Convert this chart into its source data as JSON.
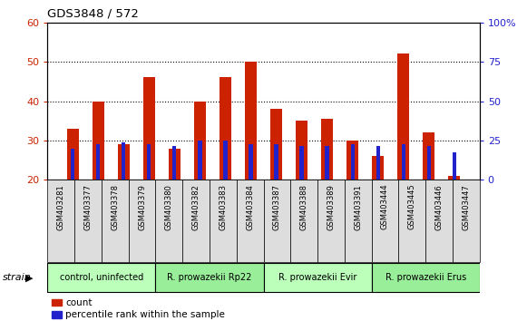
{
  "title": "GDS3848 / 572",
  "samples": [
    "GSM403281",
    "GSM403377",
    "GSM403378",
    "GSM403379",
    "GSM403380",
    "GSM403382",
    "GSM403383",
    "GSM403384",
    "GSM403387",
    "GSM403388",
    "GSM403389",
    "GSM403391",
    "GSM403444",
    "GSM403445",
    "GSM403446",
    "GSM403447"
  ],
  "count_values": [
    33,
    40,
    29,
    46,
    28,
    40,
    46,
    50,
    38,
    35,
    35.5,
    30,
    26,
    52,
    32,
    21
  ],
  "percentile_values": [
    28,
    29,
    29.5,
    29,
    28.5,
    30,
    30,
    29,
    29,
    28.5,
    28.5,
    29,
    28.5,
    29,
    28.5,
    27
  ],
  "ylim_left": [
    20,
    60
  ],
  "ylim_right": [
    0,
    100
  ],
  "yticks_left": [
    20,
    30,
    40,
    50,
    60
  ],
  "yticks_right": [
    0,
    25,
    50,
    75,
    100
  ],
  "strain_groups": [
    {
      "label": "control, uninfected",
      "start": 0,
      "end": 3
    },
    {
      "label": "R. prowazekii Rp22",
      "start": 4,
      "end": 7
    },
    {
      "label": "R. prowazekii Evir",
      "start": 8,
      "end": 11
    },
    {
      "label": "R. prowazekii Erus",
      "start": 12,
      "end": 15
    }
  ],
  "group_colors": [
    "#bbffbb",
    "#99ee99",
    "#bbffbb",
    "#99ee99"
  ],
  "bar_color_red": "#cc2200",
  "bar_color_blue": "#2222cc",
  "grid_color": "#000000",
  "bg_color": "#ffffff",
  "xticklabel_bg": "#dddddd",
  "tick_label_color_left": "#cc2200",
  "tick_label_color_right": "#2222cc",
  "legend_red_label": "count",
  "legend_blue_label": "percentile rank within the sample",
  "strain_label": "strain"
}
